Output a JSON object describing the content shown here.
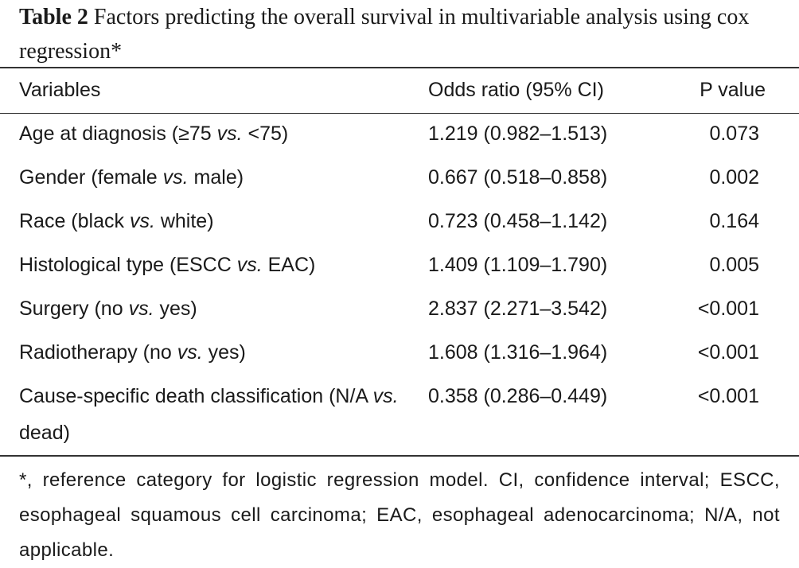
{
  "caption": {
    "label": "Table 2",
    "text": "Factors predicting the overall survival in multivariable analysis using cox regression*"
  },
  "table": {
    "headers": [
      "Variables",
      "Odds ratio (95% CI)",
      "P value"
    ],
    "rows": [
      {
        "var_pre": "Age at diagnosis (≥75 ",
        "vs": "vs.",
        "var_post": " <75)",
        "or": "1.219 (0.982–1.513)",
        "p": "0.073"
      },
      {
        "var_pre": "Gender (female ",
        "vs": "vs.",
        "var_post": " male)",
        "or": "0.667 (0.518–0.858)",
        "p": "0.002"
      },
      {
        "var_pre": "Race (black ",
        "vs": "vs.",
        "var_post": " white)",
        "or": "0.723 (0.458–1.142)",
        "p": "0.164"
      },
      {
        "var_pre": "Histological type (ESCC ",
        "vs": "vs.",
        "var_post": " EAC)",
        "or": "1.409 (1.109–1.790)",
        "p": "0.005"
      },
      {
        "var_pre": "Surgery (no ",
        "vs": "vs.",
        "var_post": " yes)",
        "or": "2.837 (2.271–3.542)",
        "p": "<0.001"
      },
      {
        "var_pre": "Radiotherapy (no ",
        "vs": "vs.",
        "var_post": " yes)",
        "or": "1.608 (1.316–1.964)",
        "p": "<0.001"
      },
      {
        "var_pre": "Cause-specific death classification (N/A ",
        "vs": "vs.",
        "var_post": " dead)",
        "or": "0.358 (0.286–0.449)",
        "p": "<0.001"
      }
    ]
  },
  "footnote": "*, reference category for logistic regression model. CI, confidence interval; ESCC, esophageal squamous cell carcinoma; EAC, esophageal adenocarcinoma; N/A, not applicable."
}
